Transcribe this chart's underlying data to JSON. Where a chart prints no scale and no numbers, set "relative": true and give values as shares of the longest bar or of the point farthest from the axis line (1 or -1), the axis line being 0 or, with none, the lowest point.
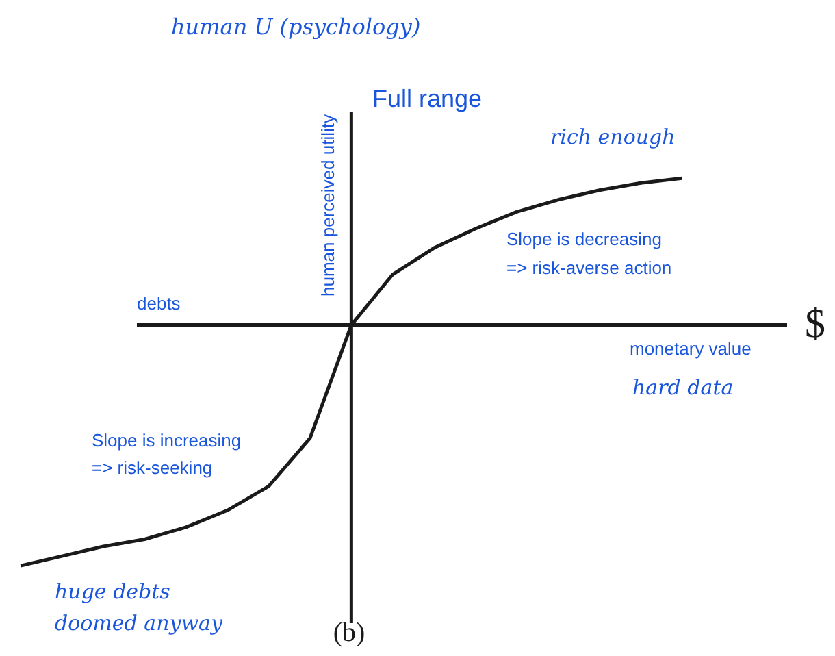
{
  "chart_data": {
    "type": "line",
    "relative": true,
    "title": "human U (psychology)",
    "subtitle": "Full range",
    "ylabel": "human perceived utility",
    "xlabel": "monetary value",
    "categories": [
      null,
      null,
      null,
      null,
      null,
      null,
      null,
      null,
      null,
      null,
      null,
      null,
      null,
      null,
      null,
      null,
      null
    ],
    "values": [
      -1.0,
      -0.96,
      -0.92,
      -0.89,
      -0.84,
      -0.77,
      -0.67,
      -0.47,
      0,
      0.21,
      0.32,
      0.4,
      0.47,
      0.52,
      0.56,
      0.59,
      0.61
    ],
    "color": "#1a1a1a",
    "line_style": "solid",
    "marker": "none",
    "grid": false,
    "annotations": [
      "debts",
      "$",
      "hard data",
      "rich enough",
      "Slope is decreasing",
      "=> risk-averse action",
      "Slope is increasing",
      "=> risk-seeking",
      "huge debts",
      "doomed anyway",
      "(b)"
    ]
  }
}
